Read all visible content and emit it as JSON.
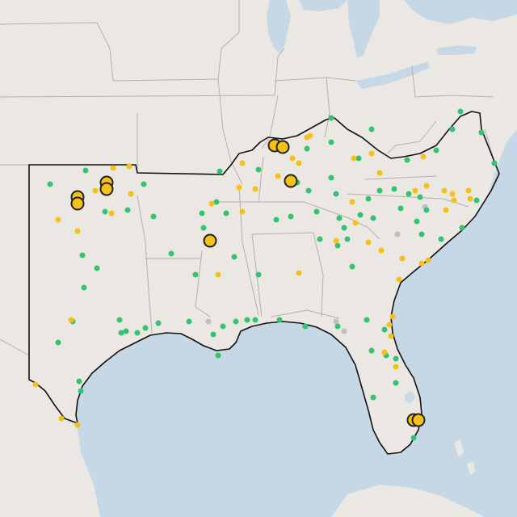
{
  "map": {
    "colors": {
      "land": "#ebe8e4",
      "water": "#c6d8e6",
      "state_line": "#b3b0ac",
      "region_outline": "#111111",
      "status_green": "#33c472",
      "status_yellow": "#f5c117",
      "status_gray": "#c0c0c0",
      "large_marker_stroke": "#222222"
    },
    "legend": null
  }
}
